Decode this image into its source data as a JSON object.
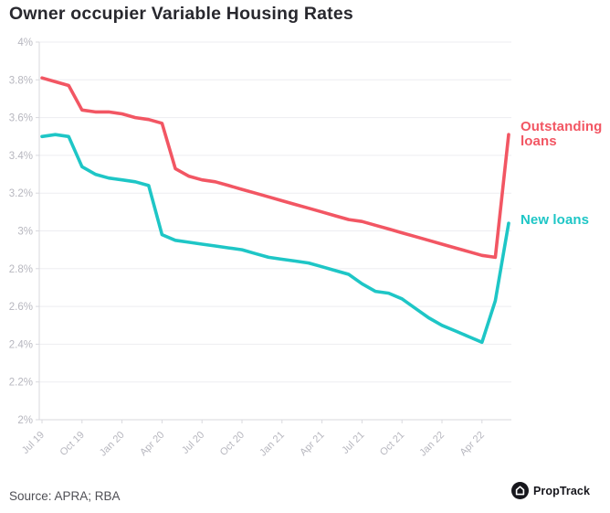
{
  "title": "Owner occupier Variable Housing Rates",
  "source": "Source: APRA; RBA",
  "logo": {
    "label": "PropTrack",
    "icon": "house-icon"
  },
  "colors": {
    "outstanding_loans": "#F25663",
    "new_loans": "#1EC6C6",
    "grid": "#ededf1",
    "axis": "#d9d9de",
    "tick_text": "#b7b7bf",
    "title_text": "#28282e"
  },
  "chart_data": {
    "type": "line",
    "title": "Owner occupier Variable Housing Rates",
    "xlabel": "",
    "ylabel": "",
    "x_unit": "month",
    "x_range": [
      "Jul 2019",
      "Jun 2022"
    ],
    "tick_interval_months": 3,
    "x_tick_labels": [
      "Jul 19",
      "Oct 19",
      "Jan 20",
      "Apr 20",
      "Jul 20",
      "Oct 20",
      "Jan 21",
      "Apr 21",
      "Jul 21",
      "Oct 21",
      "Jan 22",
      "Apr 22"
    ],
    "ylim": [
      2.0,
      4.0
    ],
    "grid": "horizontal",
    "legend_position": "right-of-line-ends",
    "y_ticks": [
      {
        "label": "4%",
        "value": 4.0
      },
      {
        "label": "3.8%",
        "value": 3.8
      },
      {
        "label": "3.6%",
        "value": 3.6
      },
      {
        "label": "3.4%",
        "value": 3.4
      },
      {
        "label": "3.2%",
        "value": 3.2
      },
      {
        "label": "3%",
        "value": 3.0
      },
      {
        "label": "2.8%",
        "value": 2.8
      },
      {
        "label": "2.6%",
        "value": 2.6
      },
      {
        "label": "2.4%",
        "value": 2.4
      },
      {
        "label": "2.2%",
        "value": 2.2
      },
      {
        "label": "2%",
        "value": 2.0
      }
    ],
    "series": [
      {
        "name": "Outstanding loans",
        "color": "#F25663",
        "values": [
          3.81,
          3.79,
          3.77,
          3.64,
          3.63,
          3.63,
          3.62,
          3.6,
          3.59,
          3.57,
          3.33,
          3.29,
          3.27,
          3.26,
          3.24,
          3.22,
          3.2,
          3.18,
          3.16,
          3.14,
          3.12,
          3.1,
          3.08,
          3.06,
          3.05,
          3.03,
          3.01,
          2.99,
          2.97,
          2.95,
          2.93,
          2.91,
          2.89,
          2.87,
          2.86,
          3.51
        ]
      },
      {
        "name": "New loans",
        "color": "#1EC6C6",
        "values": [
          3.5,
          3.51,
          3.5,
          3.34,
          3.3,
          3.28,
          3.27,
          3.26,
          3.24,
          2.98,
          2.95,
          2.94,
          2.93,
          2.92,
          2.91,
          2.9,
          2.88,
          2.86,
          2.85,
          2.84,
          2.83,
          2.81,
          2.79,
          2.77,
          2.72,
          2.68,
          2.67,
          2.64,
          2.59,
          2.54,
          2.5,
          2.47,
          2.44,
          2.41,
          2.63,
          3.04
        ]
      }
    ]
  }
}
